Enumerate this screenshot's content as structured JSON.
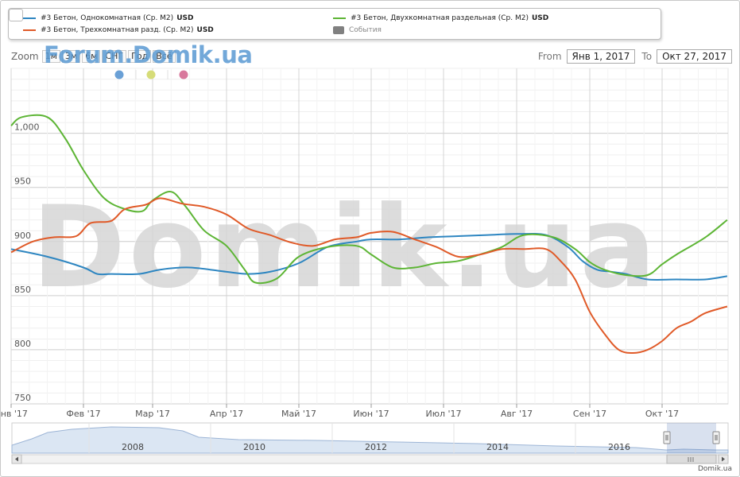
{
  "legend": {
    "items": [
      {
        "name": "#3 Бетон, Однокомнатная (Ср. M2)",
        "unit": "USD",
        "color": "#2e86c1"
      },
      {
        "name": "#3 Бетон, Двухкомнатная раздельная (Ср. M2)",
        "unit": "USD",
        "color": "#5db535"
      },
      {
        "name": "#3 Бетон, Трехкомнатная разд. (Ср. M2)",
        "unit": "USD",
        "color": "#e05a28"
      },
      {
        "name": "События",
        "unit": "",
        "color": "#808080"
      }
    ]
  },
  "zoom": {
    "label": "Zoom",
    "buttons": [
      "1м",
      "3м",
      "6м",
      "СНГ",
      "Год",
      "Всё"
    ]
  },
  "range": {
    "from_label": "From",
    "from_value": "Янв 1, 2017",
    "to_label": "To",
    "to_value": "Окт 27, 2017"
  },
  "watermark": {
    "top": "Forum.Domik.ua",
    "main": "Domik.ua"
  },
  "events": {
    "colors": [
      "#6aa0d6",
      "#d6dc78",
      "#d8789c"
    ]
  },
  "navigator": {
    "year_labels": [
      "2008",
      "2010",
      "2012",
      "2014",
      "2016"
    ]
  },
  "footer": {
    "credit": "Domik.ua"
  },
  "chart_data": {
    "type": "line",
    "ylim": [
      750,
      1060
    ],
    "y_ticks": [
      750,
      800,
      850,
      900,
      950,
      1000
    ],
    "y_tick_labels": [
      "750",
      "800",
      "850",
      "900",
      "950",
      "1,000"
    ],
    "x_labels": [
      "Янв '17",
      "Фев '17",
      "Мар '17",
      "Апр '17",
      "Май '17",
      "Июн '17",
      "Июл '17",
      "Авг '17",
      "Сен '17",
      "Окт '17"
    ],
    "series": [
      {
        "name": "#3 Бетон, Однокомнатная (Ср. M2)",
        "color": "#2e86c1",
        "x": [
          0,
          0.5,
          1,
          1.2,
          1.4,
          1.8,
          2.1,
          2.5,
          3.0,
          3.3,
          3.6,
          4.0,
          4.4,
          4.8,
          5.0,
          5.4,
          5.8,
          6.2,
          6.6,
          7.0,
          7.4,
          7.7,
          7.9,
          8.1,
          8.3,
          8.5,
          8.8,
          9.2,
          9.6,
          9.9
        ],
        "values": [
          893,
          886,
          876,
          870,
          870,
          870,
          874,
          876,
          872,
          870,
          872,
          880,
          895,
          900,
          902,
          902,
          904,
          905,
          906,
          907,
          906,
          895,
          882,
          874,
          872,
          870,
          865,
          865,
          865,
          868
        ]
      },
      {
        "name": "#3 Бетон, Двухкомнатная раздельная (Ср. M2)",
        "color": "#5db535",
        "x": [
          0,
          0.15,
          0.5,
          0.75,
          1.0,
          1.3,
          1.6,
          1.85,
          2.0,
          2.25,
          2.45,
          2.7,
          3.0,
          3.25,
          3.4,
          3.7,
          4.0,
          4.4,
          4.8,
          5.0,
          5.3,
          5.6,
          5.9,
          6.2,
          6.5,
          6.8,
          7.1,
          7.5,
          7.8,
          8.0,
          8.2,
          8.5,
          8.8,
          9.0,
          9.2,
          9.6,
          9.9
        ],
        "values": [
          1007,
          1015,
          1015,
          995,
          966,
          940,
          930,
          928,
          938,
          946,
          932,
          910,
          896,
          874,
          862,
          866,
          886,
          895,
          896,
          888,
          876,
          876,
          880,
          882,
          888,
          895,
          906,
          904,
          893,
          881,
          874,
          869,
          869,
          879,
          888,
          904,
          920
        ]
      },
      {
        "name": "#3 Бетон, Трехкомнатная разд. (Ср. M2)",
        "color": "#e05a28",
        "x": [
          0,
          0.3,
          0.6,
          0.9,
          1.1,
          1.4,
          1.6,
          1.9,
          2.1,
          2.4,
          2.7,
          3.0,
          3.3,
          3.6,
          3.9,
          4.2,
          4.5,
          4.8,
          5.0,
          5.3,
          5.6,
          5.9,
          6.2,
          6.5,
          6.8,
          7.1,
          7.4,
          7.6,
          7.8,
          8.0,
          8.2,
          8.4,
          8.6,
          8.8,
          9.0,
          9.2,
          9.4,
          9.6,
          9.9
        ],
        "values": [
          890,
          900,
          904,
          905,
          917,
          919,
          930,
          934,
          940,
          935,
          932,
          925,
          912,
          906,
          899,
          896,
          902,
          904,
          908,
          909,
          902,
          895,
          886,
          888,
          893,
          893,
          893,
          882,
          865,
          835,
          815,
          800,
          797,
          800,
          808,
          820,
          826,
          834,
          840
        ]
      }
    ]
  }
}
